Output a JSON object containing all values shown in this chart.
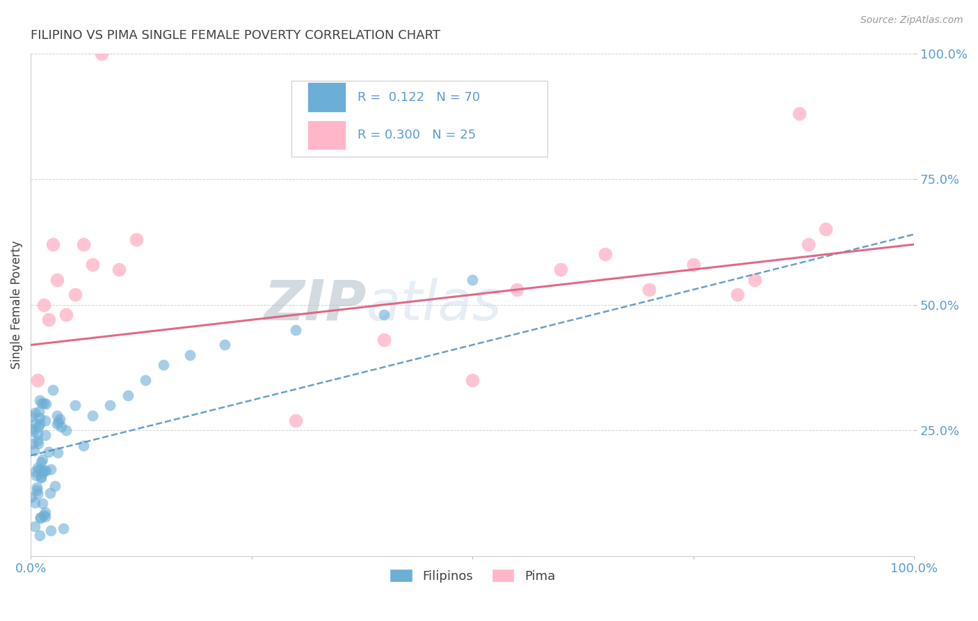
{
  "title": "FILIPINO VS PIMA SINGLE FEMALE POVERTY CORRELATION CHART",
  "source": "Source: ZipAtlas.com",
  "ylabel": "Single Female Poverty",
  "xlim": [
    0,
    1.0
  ],
  "ylim": [
    0,
    1.0
  ],
  "filipino_color": "#6baed6",
  "pima_color": "#ffb6c8",
  "filipino_line_color": "#4a90c4",
  "pima_line_color": "#e06080",
  "watermark_zip": "ZIP",
  "watermark_atlas": "atlas",
  "legend_R_filipino": "0.122",
  "legend_N_filipino": "70",
  "legend_R_pima": "0.300",
  "legend_N_pima": "25",
  "axis_color": "#5b9bd5",
  "grid_color": "#cccccc",
  "title_color": "#404040",
  "background_color": "#ffffff",
  "pima_line_intercept": 0.42,
  "pima_line_slope": 0.2,
  "fil_line_intercept": 0.2,
  "fil_line_slope": 0.44
}
